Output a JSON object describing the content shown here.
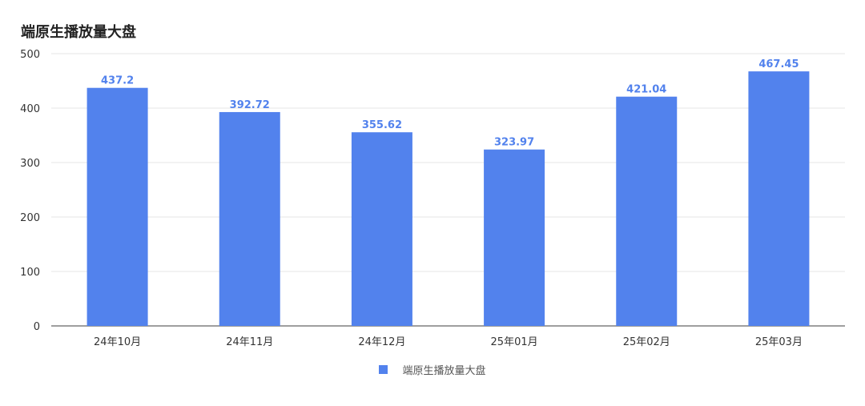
{
  "chart_data": {
    "type": "bar",
    "title": "端原生播放量大盘",
    "categories": [
      "24年10月",
      "24年11月",
      "24年12月",
      "25年01月",
      "25年02月",
      "25年03月"
    ],
    "series": [
      {
        "name": "端原生播放量大盘",
        "values": [
          437.2,
          392.72,
          355.62,
          323.97,
          421.04,
          467.45
        ],
        "color": "#5282ED"
      }
    ],
    "value_labels": [
      "437.2",
      "392.72",
      "355.62",
      "323.97",
      "421.04",
      "467.45"
    ],
    "yticks": [
      "0",
      "100",
      "200",
      "300",
      "400",
      "500"
    ],
    "ylim": [
      0,
      500
    ],
    "grid": true,
    "legend_position": "bottom",
    "colors": {
      "bar": "#5282ED",
      "label": "#5282ED",
      "axis_text": "#333333",
      "grid": "#e5e5e5"
    }
  }
}
